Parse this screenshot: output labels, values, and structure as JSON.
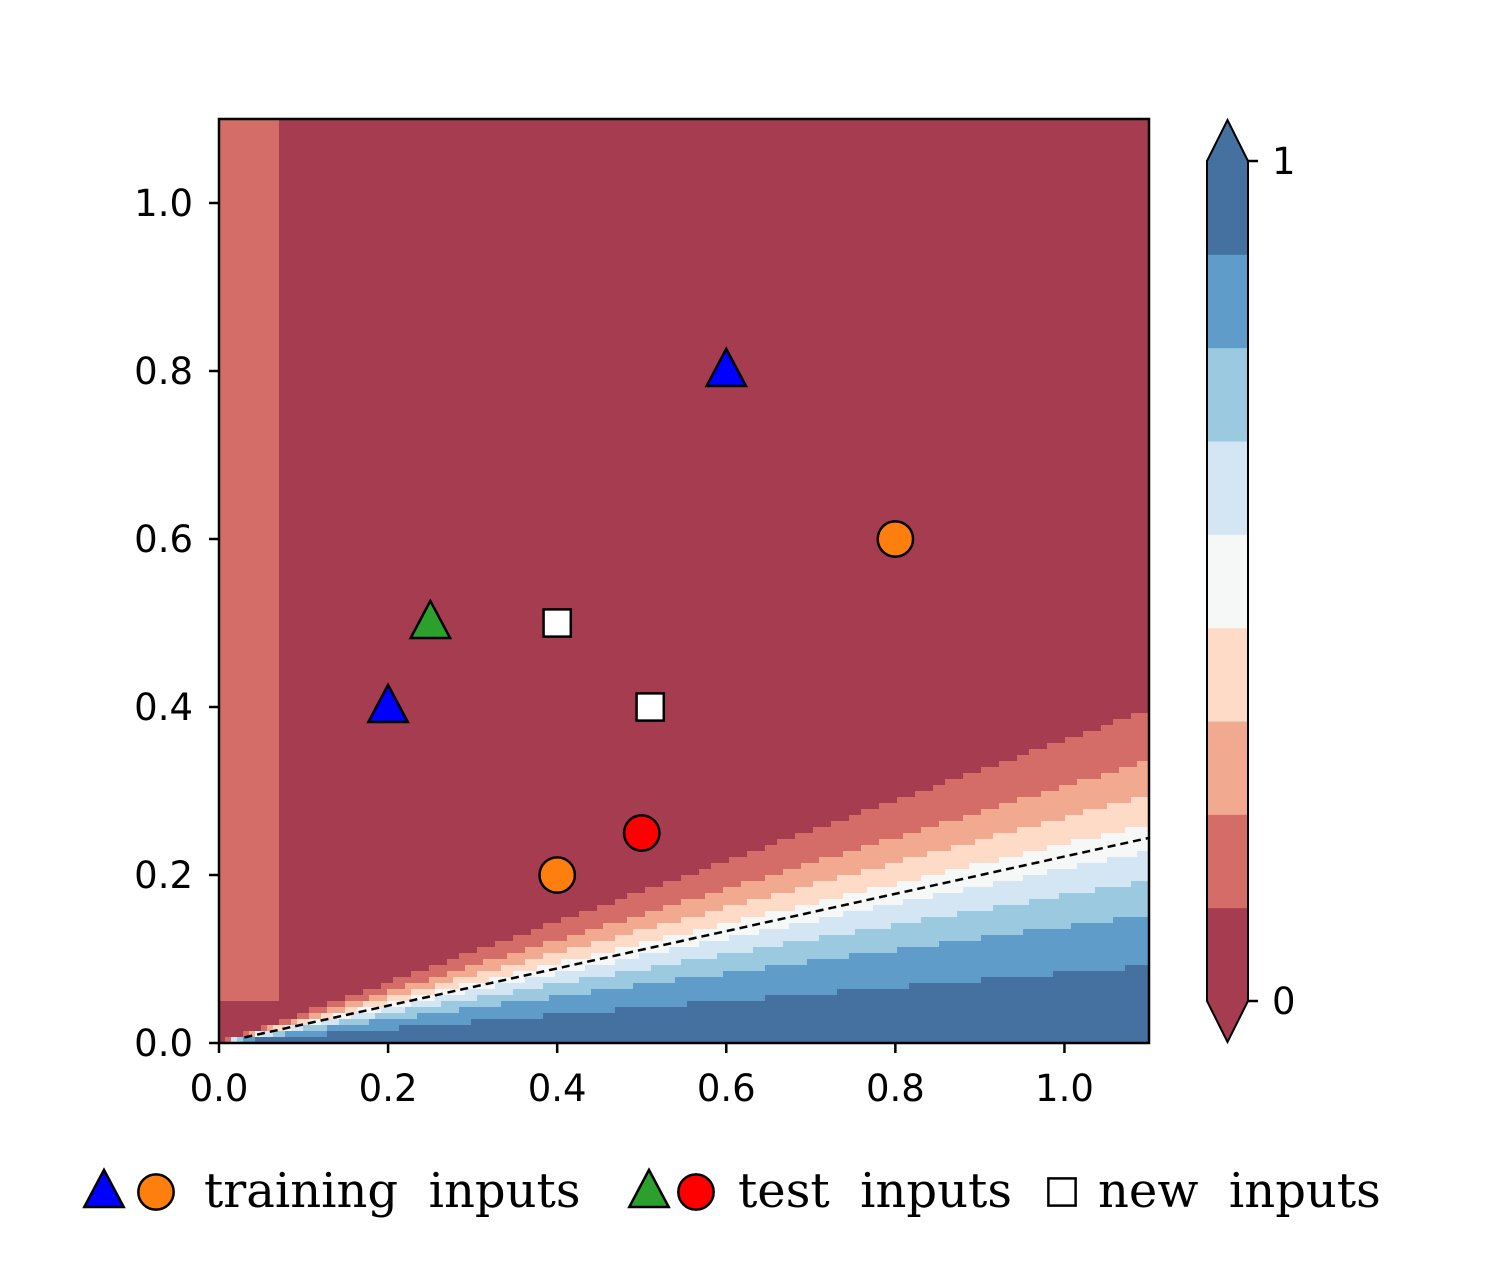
{
  "chart_data": {
    "type": "scatter",
    "background": "contour",
    "xlim": [
      0.0,
      1.1
    ],
    "ylim": [
      0.0,
      1.1
    ],
    "x_ticks": [
      {
        "value": 0.0,
        "label": "0.0"
      },
      {
        "value": 0.2,
        "label": "0.2"
      },
      {
        "value": 0.4,
        "label": "0.4"
      },
      {
        "value": 0.6,
        "label": "0.6"
      },
      {
        "value": 0.8,
        "label": "0.8"
      },
      {
        "value": 1.0,
        "label": "1.0"
      }
    ],
    "y_ticks": [
      {
        "value": 0.0,
        "label": "0.0"
      },
      {
        "value": 0.2,
        "label": "0.2"
      },
      {
        "value": 0.4,
        "label": "0.4"
      },
      {
        "value": 0.6,
        "label": "0.6"
      },
      {
        "value": 0.8,
        "label": "0.8"
      },
      {
        "value": 1.0,
        "label": "1.0"
      }
    ],
    "colorbar": {
      "min_label": "0",
      "max_label": "1",
      "extend": "both",
      "levels": 9,
      "colors": [
        "#a63c50",
        "#d46d68",
        "#f1aa8f",
        "#fddbc7",
        "#f6f7f7",
        "#d4e6f3",
        "#9bc9e0",
        "#5f9cc9",
        "#44719f"
      ]
    },
    "decision_boundary": {
      "style": "dashed",
      "value": 0.5
    },
    "series": [
      {
        "marker": "triangle",
        "color": "#0000ff",
        "points": [
          {
            "x": 0.2,
            "y": 0.4
          },
          {
            "x": 0.6,
            "y": 0.8
          }
        ]
      },
      {
        "marker": "circle",
        "color": "#ff7f0e",
        "points": [
          {
            "x": 0.4,
            "y": 0.2
          },
          {
            "x": 0.8,
            "y": 0.6
          }
        ]
      },
      {
        "marker": "triangle",
        "color": "#2ca02c",
        "points": [
          {
            "x": 0.25,
            "y": 0.5
          }
        ]
      },
      {
        "marker": "circle",
        "color": "#ff0000",
        "points": [
          {
            "x": 0.5,
            "y": 0.25
          }
        ]
      },
      {
        "marker": "square",
        "color": "#ffffff",
        "points": [
          {
            "x": 0.4,
            "y": 0.5
          },
          {
            "x": 0.51,
            "y": 0.4
          }
        ]
      }
    ],
    "legend": {
      "placement": "bottom",
      "entries": [
        {
          "label": "training  inputs",
          "markers": [
            {
              "shape": "triangle",
              "color": "#0000ff"
            },
            {
              "shape": "circle",
              "color": "#ff7f0e"
            }
          ]
        },
        {
          "label": "test  inputs",
          "markers": [
            {
              "shape": "triangle",
              "color": "#2ca02c"
            },
            {
              "shape": "circle",
              "color": "#ff0000"
            }
          ]
        },
        {
          "label": "new  inputs",
          "markers": [
            {
              "shape": "square",
              "color": "#ffffff"
            }
          ]
        }
      ]
    }
  }
}
